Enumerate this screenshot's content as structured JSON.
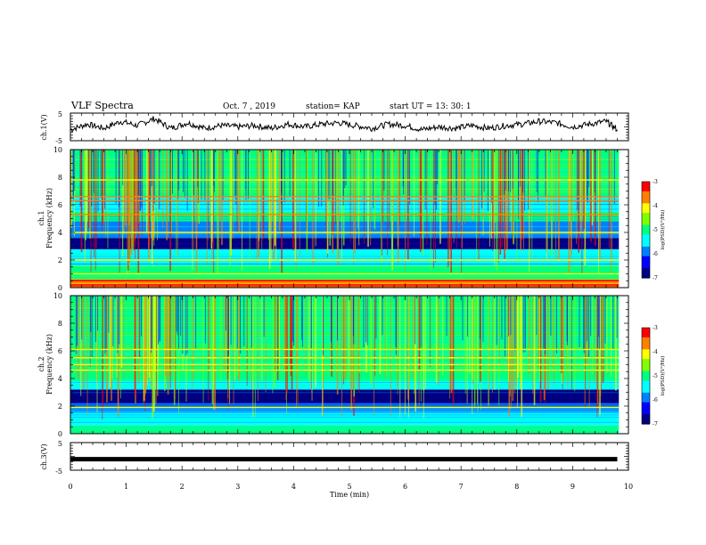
{
  "header": {
    "title": "VLF Spectra",
    "date": "Oct. 7 , 2019",
    "station": "station= KAP",
    "start": "start  UT =   13: 30: 1"
  },
  "colors": {
    "colormap": [
      "#000080",
      "#0000ff",
      "#0080ff",
      "#00ffff",
      "#00ff80",
      "#80ff00",
      "#ffff00",
      "#ff8000",
      "#ff0000",
      "#ffffff"
    ],
    "trace": "#000000"
  },
  "chart_data": [
    {
      "type": "line",
      "name": "ch1-waveform",
      "ylabel": "ch.1(V)",
      "ylim": [
        -5,
        5
      ],
      "yticks": [
        "5",
        "-5"
      ],
      "xlim": [
        0,
        10
      ],
      "x": [
        0.0,
        0.3,
        0.6,
        0.9,
        1.2,
        1.5,
        1.8,
        2.1,
        2.4,
        2.7,
        3.0,
        3.3,
        3.6,
        3.9,
        4.2,
        4.5,
        4.8,
        5.1,
        5.4,
        5.7,
        6.0,
        6.3,
        6.6,
        6.9,
        7.2,
        7.5,
        7.8,
        8.1,
        8.4,
        8.7,
        9.0,
        9.3,
        9.6,
        9.8
      ],
      "y": [
        -1.0,
        1.0,
        -0.5,
        2.0,
        0.5,
        3.0,
        -0.5,
        1.5,
        -0.5,
        0.5,
        0.0,
        0.5,
        -0.5,
        1.0,
        0.0,
        1.0,
        1.5,
        0.5,
        -0.5,
        1.0,
        0.5,
        -1.0,
        0.0,
        -0.5,
        0.5,
        -0.5,
        0.5,
        1.0,
        2.0,
        1.5,
        0.0,
        1.0,
        2.0,
        -1.0
      ]
    },
    {
      "type": "heatmap",
      "name": "ch1-spectrogram",
      "ylabel": "ch.1\nFrequency (kHz)",
      "ylim": [
        0,
        10
      ],
      "yticks": [
        "0",
        "2",
        "4",
        "6",
        "8",
        "10"
      ],
      "xlim": [
        0,
        10
      ],
      "colorbar": {
        "label": "log(PSD)(V²/Hz)",
        "range": [
          -7,
          -3
        ],
        "ticks": [
          "-3",
          "-4",
          "-5",
          "-6",
          "-7"
        ]
      },
      "bands": [
        {
          "from": 0.0,
          "to": 0.6,
          "level": -3.6
        },
        {
          "from": 0.6,
          "to": 1.6,
          "level": -5.0
        },
        {
          "from": 1.6,
          "to": 2.8,
          "level": -5.6
        },
        {
          "from": 2.8,
          "to": 3.6,
          "level": -6.6
        },
        {
          "from": 3.6,
          "to": 4.8,
          "level": -5.8
        },
        {
          "from": 4.8,
          "to": 5.5,
          "level": -5.2
        },
        {
          "from": 5.5,
          "to": 6.6,
          "level": -5.6
        },
        {
          "from": 6.6,
          "to": 7.5,
          "level": -4.8
        },
        {
          "from": 7.5,
          "to": 10.0,
          "level": -4.8
        }
      ],
      "lines": [
        {
          "f": 0.2,
          "level": -3.2
        },
        {
          "f": 0.5,
          "level": -3.4
        },
        {
          "f": 1.0,
          "level": -4.0
        },
        {
          "f": 2.0,
          "level": -4.2
        },
        {
          "f": 4.0,
          "level": -4.1
        },
        {
          "f": 5.3,
          "level": -3.8
        },
        {
          "f": 6.3,
          "level": -3.5
        },
        {
          "f": 6.6,
          "level": -3.8
        },
        {
          "f": 7.8,
          "level": -4.0
        }
      ]
    },
    {
      "type": "heatmap",
      "name": "ch2-spectrogram",
      "ylabel": "ch.2\nFrequency (kHz)",
      "ylim": [
        0,
        10
      ],
      "yticks": [
        "0",
        "2",
        "4",
        "6",
        "8",
        "10"
      ],
      "xlim": [
        0,
        10
      ],
      "colorbar": {
        "label": "log(PSD)(V²/Hz)",
        "range": [
          -7,
          -3
        ],
        "ticks": [
          "-3",
          "-4",
          "-5",
          "-6",
          "-7"
        ]
      },
      "bands": [
        {
          "from": 0.0,
          "to": 0.6,
          "level": -5.2
        },
        {
          "from": 0.6,
          "to": 1.6,
          "level": -5.6
        },
        {
          "from": 1.6,
          "to": 2.2,
          "level": -6.0
        },
        {
          "from": 2.2,
          "to": 3.2,
          "level": -6.7
        },
        {
          "from": 3.2,
          "to": 3.8,
          "level": -5.6
        },
        {
          "from": 3.8,
          "to": 4.7,
          "level": -5.0
        },
        {
          "from": 4.7,
          "to": 5.8,
          "level": -5.2
        },
        {
          "from": 5.8,
          "to": 7.0,
          "level": -5.0
        },
        {
          "from": 7.0,
          "to": 10.0,
          "level": -4.9
        }
      ],
      "lines": [
        {
          "f": 1.9,
          "level": -3.9
        },
        {
          "f": 4.6,
          "level": -4.0
        },
        {
          "f": 5.0,
          "level": -4.3
        },
        {
          "f": 5.5,
          "level": -4.2
        },
        {
          "f": 6.1,
          "level": -4.1
        }
      ]
    },
    {
      "type": "line",
      "name": "ch3-waveform",
      "ylabel": "ch.3(V)",
      "ylim": [
        -5,
        5
      ],
      "yticks": [
        "5",
        "-5"
      ],
      "xlim": [
        0,
        10
      ],
      "x": [
        0.0,
        9.8
      ],
      "y": [
        -1.0,
        -1.0
      ]
    }
  ],
  "xaxis": {
    "label": "Time (min)",
    "ticks": [
      "0",
      "1",
      "2",
      "3",
      "4",
      "5",
      "6",
      "7",
      "8",
      "9",
      "10"
    ]
  }
}
